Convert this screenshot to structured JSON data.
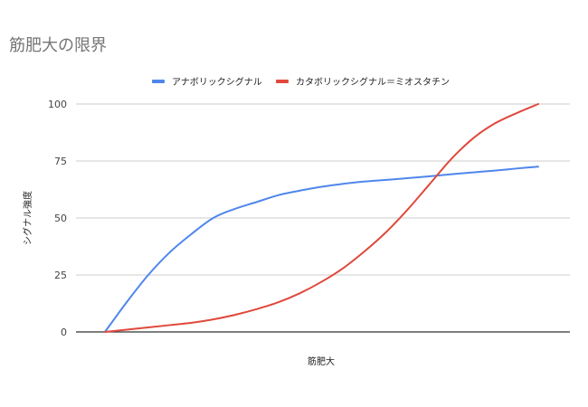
{
  "chart_data": {
    "type": "line",
    "title": "筋肥大の限界",
    "xlabel": "筋肥大",
    "ylabel": "シグナル強度",
    "ylim": [
      0,
      100
    ],
    "yticks": [
      "0",
      "25",
      "50",
      "75",
      "100"
    ],
    "grid": true,
    "legend_position": "top",
    "x": [
      0,
      1,
      2,
      3,
      4,
      5,
      6,
      7,
      8,
      9,
      10,
      11,
      12,
      13,
      14,
      15,
      16,
      17,
      18,
      19,
      20
    ],
    "series": [
      {
        "name": "アナボリックシグナル",
        "color": "#4f86ec",
        "values": [
          0,
          13,
          25,
          35,
          43,
          50,
          54,
          57,
          60,
          62,
          63.7,
          65,
          66,
          66.7,
          67.5,
          68.3,
          69.2,
          70,
          70.8,
          71.7,
          72.5
        ]
      },
      {
        "name": "カタボリックシグナル＝ミオスタチン",
        "color": "#e0493c",
        "values": [
          0,
          1,
          2,
          3,
          4,
          5.5,
          7.5,
          10,
          13,
          17,
          22,
          28,
          35.5,
          44,
          54,
          65,
          76,
          85,
          91.5,
          96,
          100
        ]
      }
    ]
  }
}
